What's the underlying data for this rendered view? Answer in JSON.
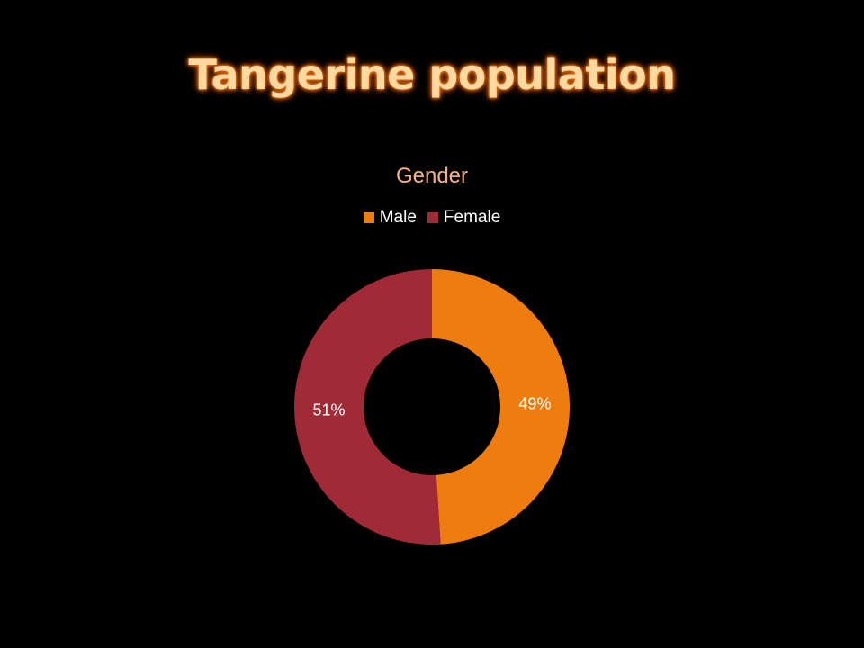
{
  "slide": {
    "title": "Tangerine population"
  },
  "chart_data": {
    "type": "pie",
    "variant": "donut",
    "title": "Gender",
    "legend_position": "top",
    "categories": [
      "Male",
      "Female"
    ],
    "values": [
      49,
      51
    ],
    "labels": [
      "49%",
      "51%"
    ],
    "colors": [
      "#ef7c0e",
      "#a02a36"
    ],
    "label_colors": [
      "#ffffff",
      "#ffffff"
    ],
    "start_angle_deg": 0,
    "direction": "clockwise"
  }
}
